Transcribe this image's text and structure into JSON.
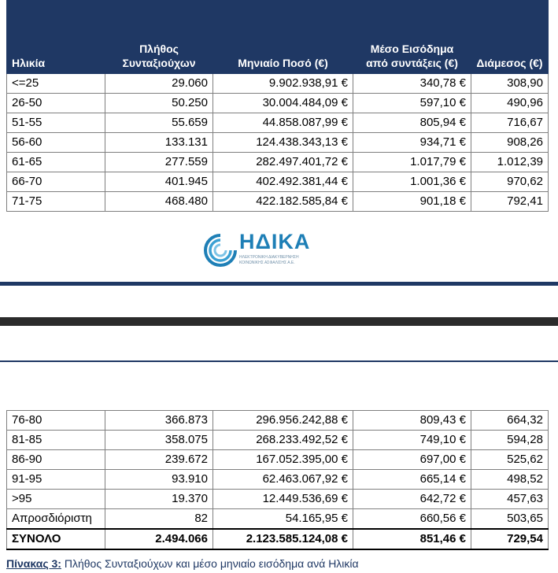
{
  "headers": [
    "Ηλικία",
    "Πλήθος Συνταξιούχων",
    "Μηνιαίο Ποσό (€)",
    "Μέσο Εισόδημα από συντάξεις (€)",
    "Διάμεσος (€)"
  ],
  "rows_top": [
    [
      "<=25",
      "29.060",
      "9.902.938,91 €",
      "340,78 €",
      "308,90"
    ],
    [
      "26-50",
      "50.250",
      "30.004.484,09 €",
      "597,10 €",
      "490,96"
    ],
    [
      "51-55",
      "55.659",
      "44.858.087,99 €",
      "805,94 €",
      "716,67"
    ],
    [
      "56-60",
      "133.131",
      "124.438.343,13 €",
      "934,71 €",
      "908,26"
    ],
    [
      "61-65",
      "277.559",
      "282.497.401,72 €",
      "1.017,79 €",
      "1.012,39"
    ],
    [
      "66-70",
      "401.945",
      "402.492.381,44 €",
      "1.001,36 €",
      "970,62"
    ],
    [
      "71-75",
      "468.480",
      "422.182.585,84 €",
      "901,18 €",
      "792,41"
    ]
  ],
  "rows_bottom": [
    [
      "76-80",
      "366.873",
      "296.956.242,88 €",
      "809,43 €",
      "664,32"
    ],
    [
      "81-85",
      "358.075",
      "268.233.492,52 €",
      "749,10 €",
      "594,28"
    ],
    [
      "86-90",
      "239.672",
      "167.052.395,00 €",
      "697,00 €",
      "525,62"
    ],
    [
      "91-95",
      "93.910",
      "62.463.067,92 €",
      "665,14 €",
      "498,52"
    ],
    [
      ">95",
      "19.370",
      "12.449.536,69 €",
      "642,72 €",
      "457,63"
    ],
    [
      "Απροσδιόριστη",
      "82",
      "54.165,95 €",
      "660,56 €",
      "503,65"
    ]
  ],
  "total_row": [
    "ΣΥΝΟΛΟ",
    "2.494.066",
    "2.123.585.124,08 €",
    "851,46 €",
    "729,54"
  ],
  "logo": {
    "name": "ΗΔΙΚΑ",
    "line1": "ΗΛΕΚΤΡΟΝΙΚΗ ΔΙΑΚΥΒΕΡΝΗΣΗ",
    "line2": "ΚΟΙΝΩΝΙΚΗΣ ΑΣΦΑΛΙΣΗΣ Α.Ε.",
    "color": "#1e7fb6"
  },
  "caption": {
    "label": "Πίνακας 3:",
    "text": "Πλήθος Συνταξιούχων και μέσο μηνιαίο εισόδημα ανά Ηλικία"
  },
  "colors": {
    "header_bg": "#1f3864",
    "header_text": "#ffffff"
  }
}
